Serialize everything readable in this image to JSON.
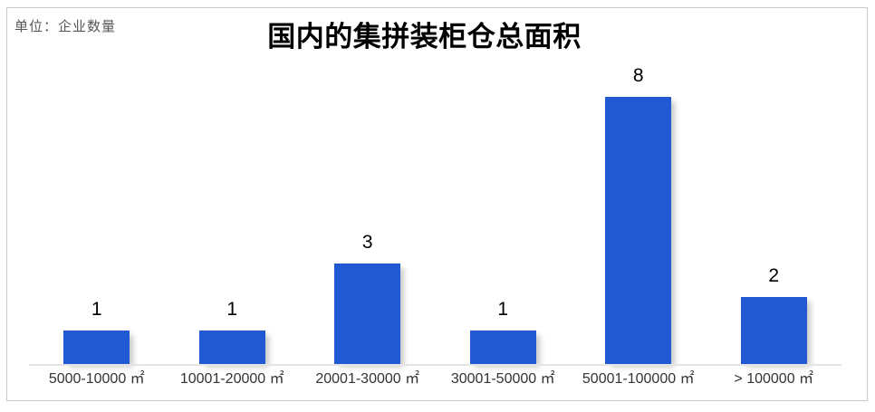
{
  "unit_label": "单位：企业数量",
  "chart_data": {
    "type": "bar",
    "title": "国内的集拼装柜仓总面积",
    "categories": [
      "5000-10000 ㎡",
      "10001-20000 ㎡",
      "20001-30000 ㎡",
      "30001-50000 ㎡",
      "50001-100000 ㎡",
      "> 100000 ㎡"
    ],
    "values": [
      1,
      1,
      3,
      1,
      8,
      2
    ],
    "xlabel": "",
    "ylabel": "企业数量",
    "ylim": [
      0,
      8
    ],
    "grid": false,
    "legend": false,
    "value_labels_shown": true,
    "bar_color": "#2159d2",
    "value_label_color": "#000000",
    "tick_label_color": "#333333",
    "axis_line_color": "#e4e4e4"
  },
  "colors": {
    "border": "#c9c9c9",
    "background": "#ffffff",
    "unit_label": "#56565a",
    "title": "#000000"
  }
}
